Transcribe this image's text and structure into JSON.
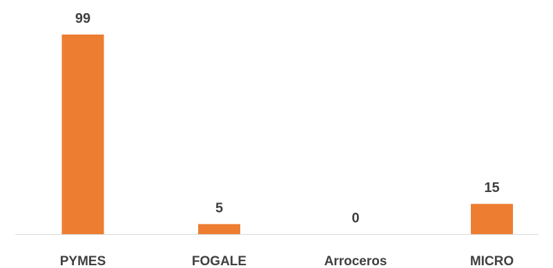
{
  "chart_data": {
    "type": "bar",
    "categories": [
      "PYMES",
      "FOGALE",
      "Arroceros",
      "MICRO"
    ],
    "values": [
      99,
      5,
      0,
      15
    ],
    "title": "",
    "xlabel": "",
    "ylabel": "",
    "ylim": [
      0,
      99
    ],
    "grid": false,
    "legend": "none",
    "data_labels": [
      "99",
      "5",
      "0",
      "15"
    ],
    "colors": {
      "bar": "#ED7D31",
      "axis": "#D9D9D9",
      "text": "#404040"
    }
  }
}
